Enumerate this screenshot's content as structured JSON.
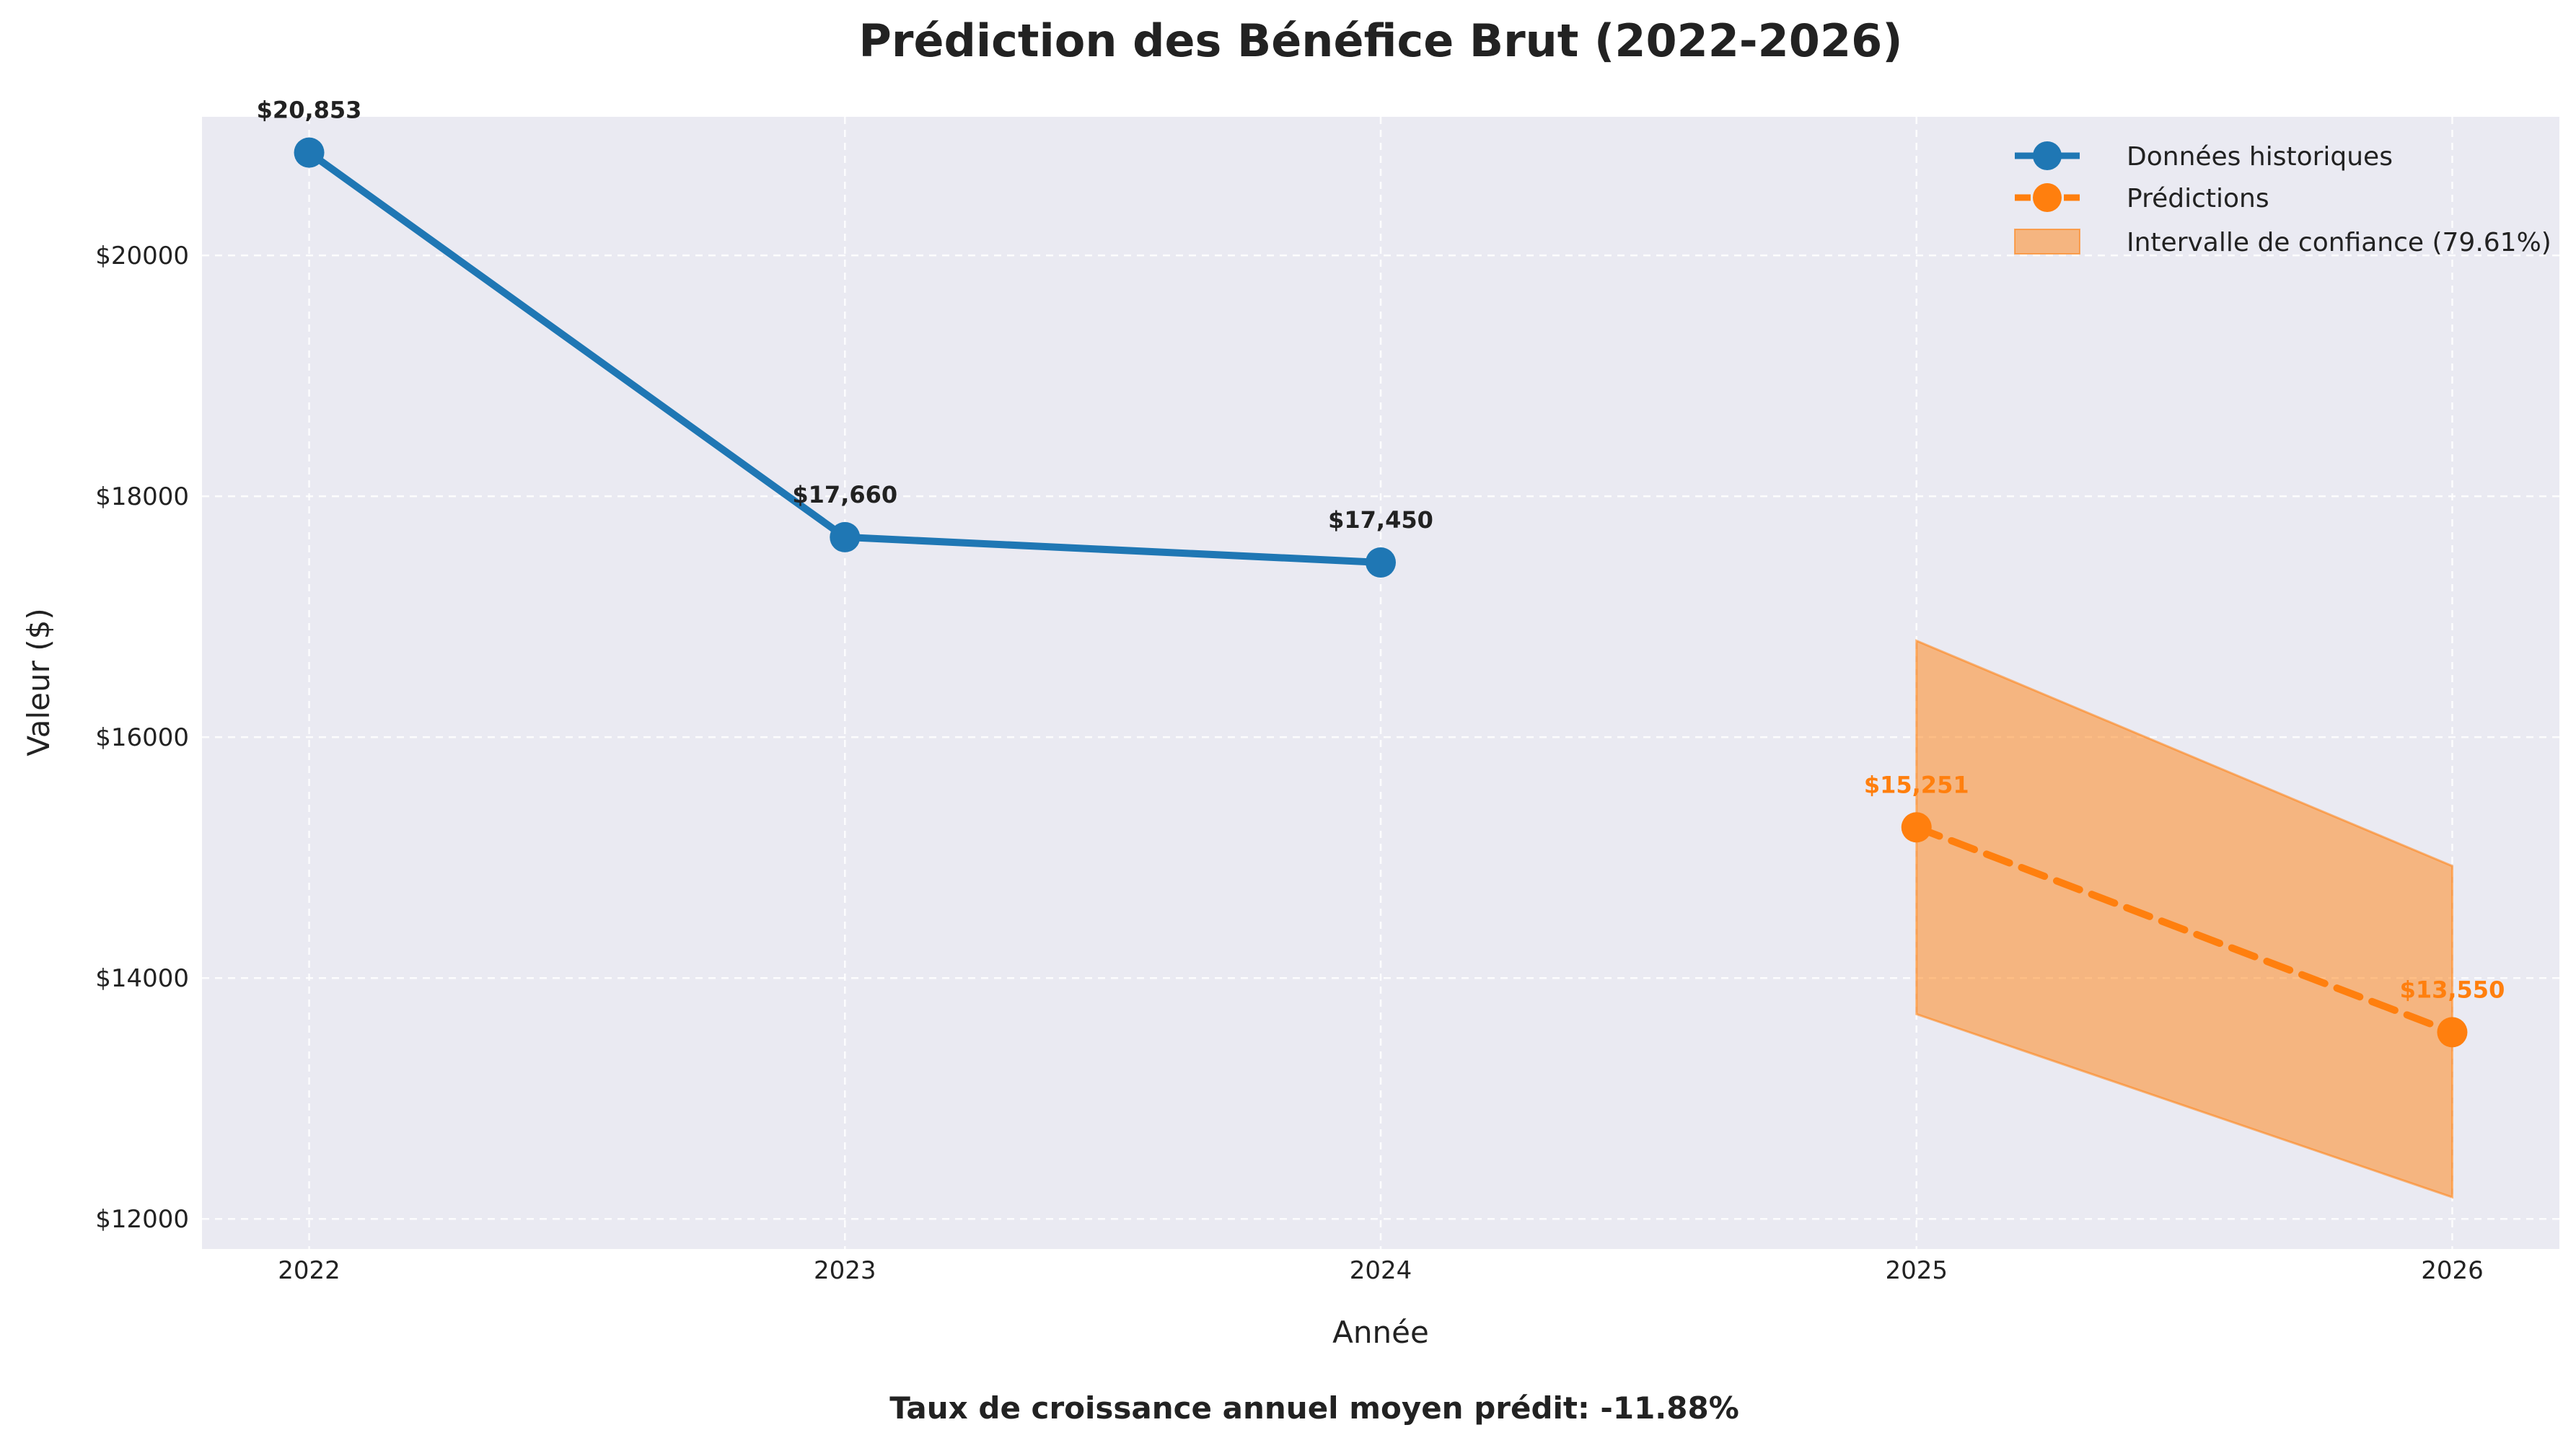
{
  "chart_data": {
    "type": "line",
    "title": "Prédiction des Bénéfice Brut (2022-2026)",
    "xlabel": "Année",
    "ylabel": "Valeur ($)",
    "x_ticks": [
      "2022",
      "2023",
      "2024",
      "2025",
      "2026"
    ],
    "y_ticks": [
      "$12000",
      "$14000",
      "$16000",
      "$18000",
      "$20000"
    ],
    "y_tick_values": [
      12000,
      14000,
      16000,
      18000,
      20000
    ],
    "ylim": [
      11750,
      21150
    ],
    "xlim": [
      2021.8,
      2026.2
    ],
    "grid": true,
    "legend_position": "top-right",
    "series": [
      {
        "name": "Données historiques",
        "color": "#1f77b4",
        "style": "solid",
        "x": [
          2022,
          2023,
          2024
        ],
        "values": [
          20853,
          17660,
          17450
        ],
        "labels": [
          "$20,853",
          "$17,660",
          "$17,450"
        ]
      },
      {
        "name": "Prédictions",
        "color": "#ff7f0e",
        "style": "dashed",
        "x": [
          2025,
          2026
        ],
        "values": [
          15251,
          13550
        ],
        "labels": [
          "$15,251",
          "$13,550"
        ]
      }
    ],
    "confidence_interval": {
      "name": "Intervalle de confiance (79.61%)",
      "color": "#ff7f0e",
      "x": [
        2025,
        2026
      ],
      "lower": [
        13700,
        12180
      ],
      "upper": [
        16800,
        14930
      ]
    },
    "annotation": "Taux de croissance annuel moyen prédit: -11.88%"
  }
}
